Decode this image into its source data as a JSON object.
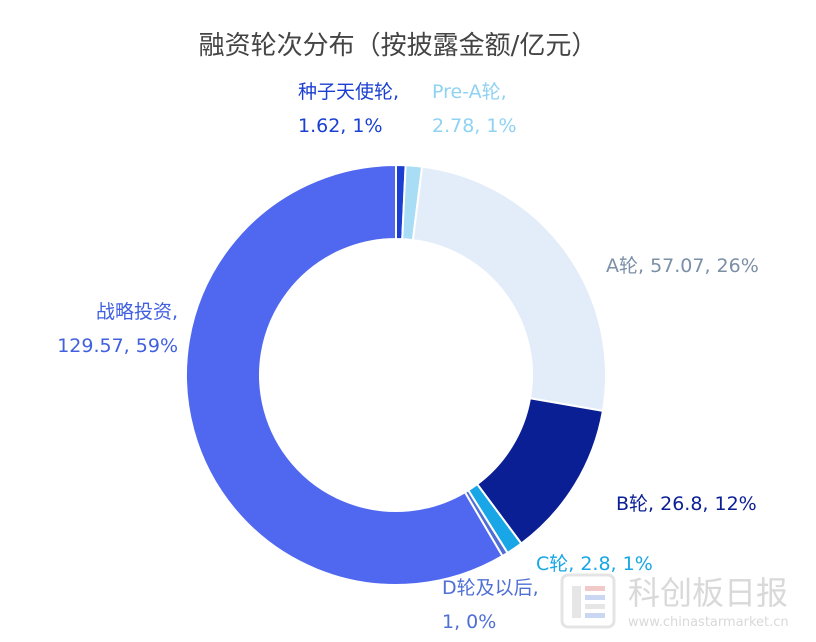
{
  "chart_data": {
    "type": "pie",
    "title": "融资轮次分布（按披露金额/亿元）",
    "slices": [
      {
        "label": "种子天使轮",
        "value": 1.62,
        "percent": "1%",
        "color": "#1a3fd1",
        "label_text": "种子天使轮,",
        "value_text": "1.62, 1%"
      },
      {
        "label": "Pre-A轮",
        "value": 2.78,
        "percent": "1%",
        "color": "#a9dcf5",
        "label_text": "Pre-A轮,",
        "value_text": "2.78, 1%"
      },
      {
        "label": "A轮",
        "value": 57.07,
        "percent": "26%",
        "color": "#e3edf9",
        "label_text": "A轮, 57.07, 26%"
      },
      {
        "label": "B轮",
        "value": 26.8,
        "percent": "12%",
        "color": "#0b1f94",
        "label_text": "B轮, 26.8, 12%"
      },
      {
        "label": "C轮",
        "value": 2.8,
        "percent": "1%",
        "color": "#18a6e6",
        "label_text": "C轮, 2.8, 1%"
      },
      {
        "label": "D轮及以后",
        "value": 1,
        "percent": "0%",
        "color": "#4f6fd6",
        "label_text": "D轮及以后,",
        "value_text": "1, 0%"
      },
      {
        "label": "战略投资",
        "value": 129.57,
        "percent": "59%",
        "color": "#5068f0",
        "label_text": "战略投资,",
        "value_text": "129.57, 59%"
      }
    ],
    "legend": "none"
  },
  "watermark": {
    "text": "科创板日报",
    "url": "www.chinastarmarket.cn"
  }
}
